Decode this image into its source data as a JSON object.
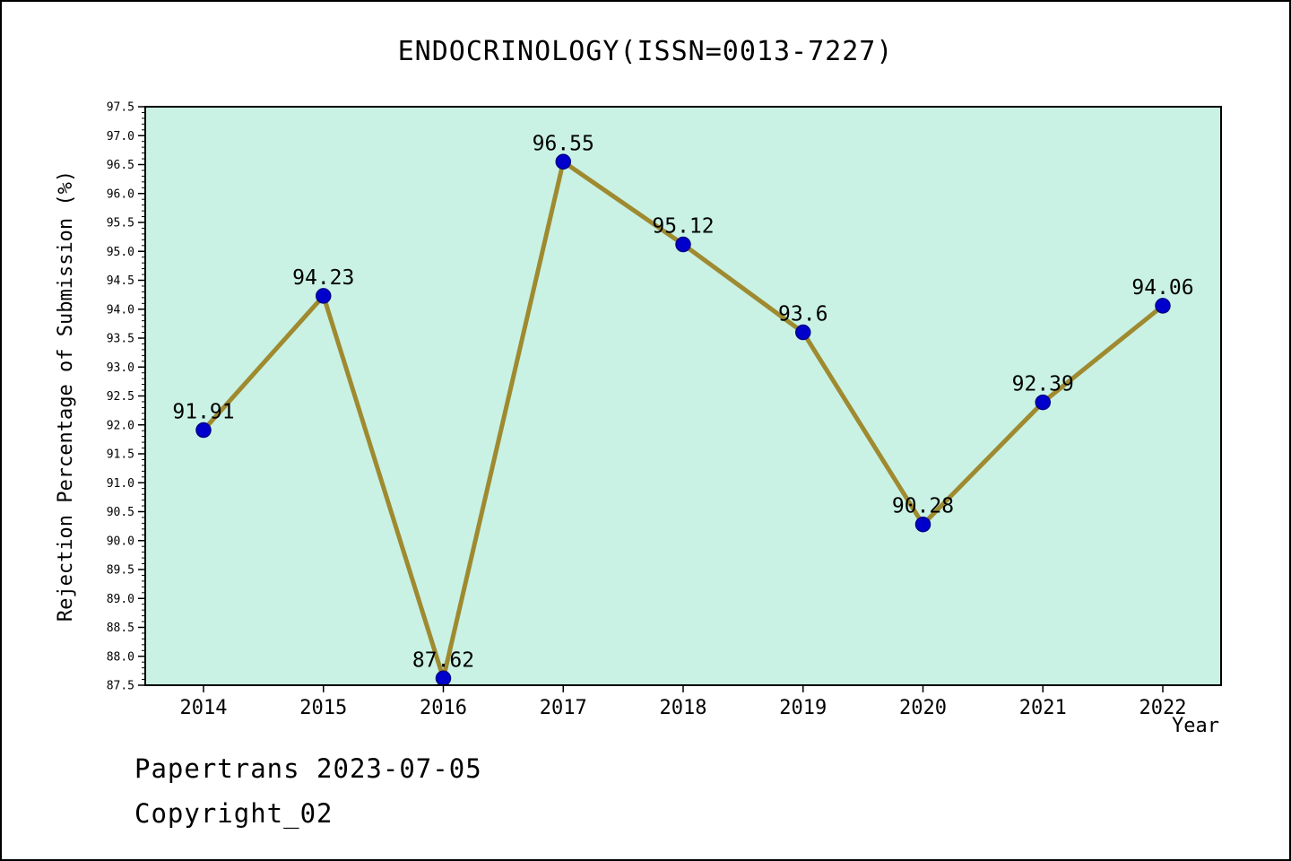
{
  "chart_data": {
    "type": "line",
    "title": "ENDOCRINOLOGY(ISSN=0013-7227)",
    "xlabel": "Year",
    "ylabel": "Rejection Percentage of Submission (%)",
    "x": [
      2014,
      2015,
      2016,
      2017,
      2018,
      2019,
      2020,
      2021,
      2022
    ],
    "categories": [
      "2014",
      "2015",
      "2016",
      "2017",
      "2018",
      "2019",
      "2020",
      "2021",
      "2022"
    ],
    "values": [
      91.91,
      94.23,
      87.62,
      96.55,
      95.12,
      93.6,
      90.28,
      92.39,
      94.06
    ],
    "point_labels": [
      "91.91",
      "94.23",
      "87.62",
      "96.55",
      "95.12",
      "93.6",
      "90.28",
      "92.39",
      "94.06"
    ],
    "ylim": [
      87.5,
      97.5
    ],
    "ytick_step": 0.5,
    "ytick_minor_step": 0.1,
    "grid": false,
    "legend": false,
    "colors": {
      "plot_bg": "#c9f2e5",
      "line": "#9f8a30",
      "marker": "#0000cd",
      "marker_edge": "#00008b",
      "axis": "#000000"
    }
  },
  "footer": {
    "line1": "Papertrans 2023-07-05",
    "line2": "Copyright_02"
  }
}
